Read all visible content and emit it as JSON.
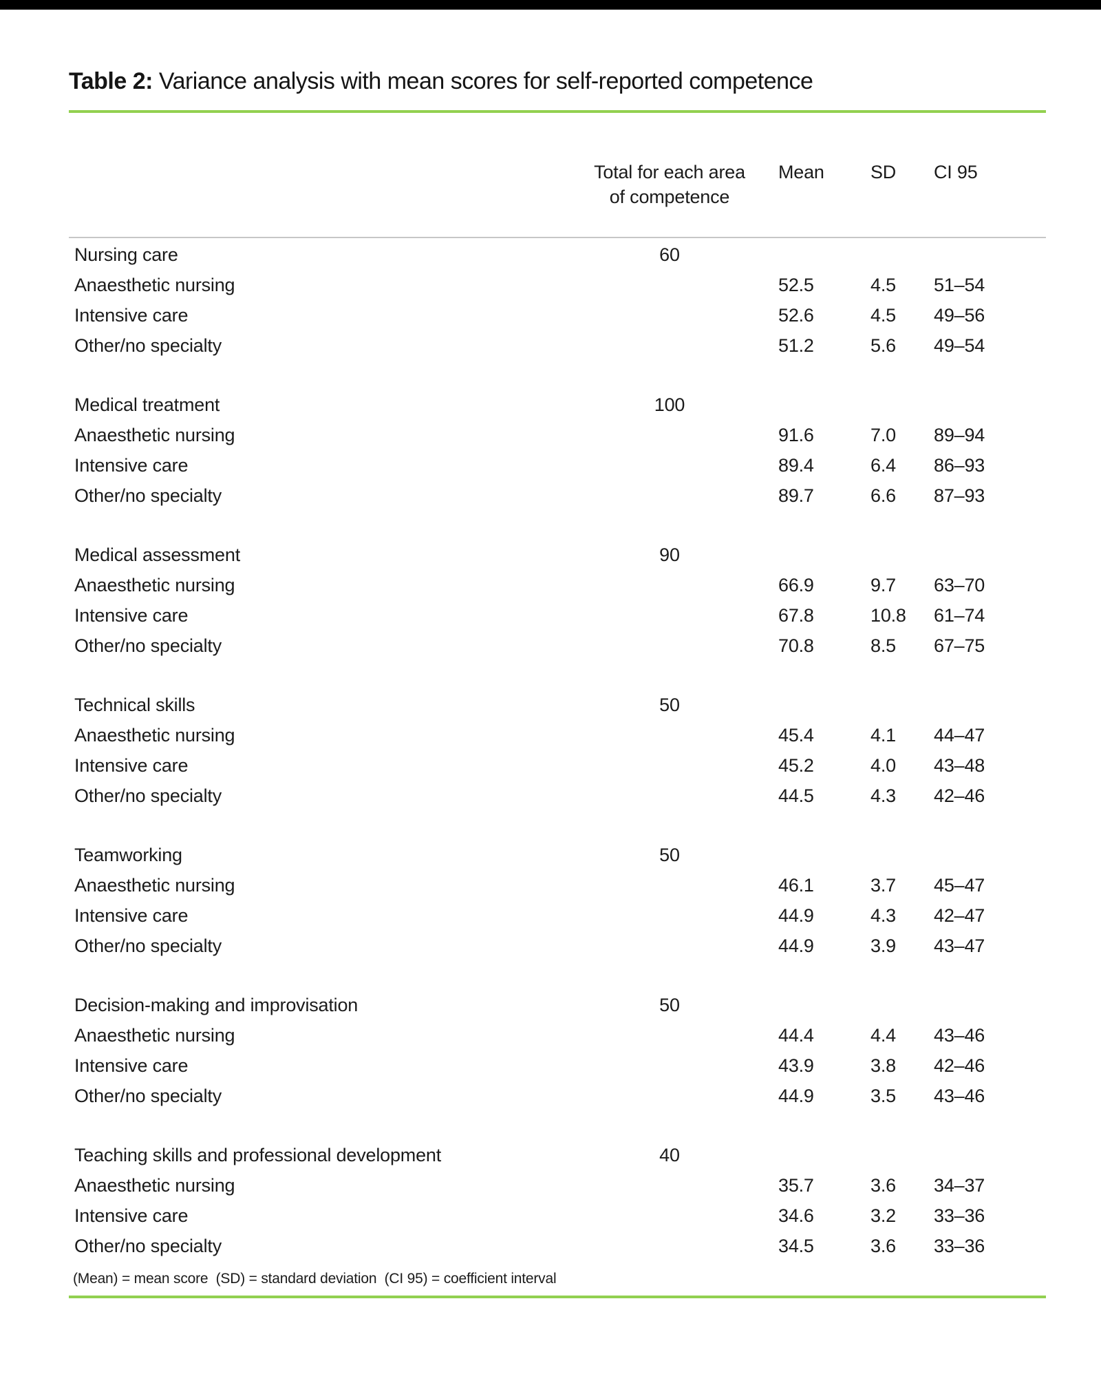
{
  "title": {
    "label": "Table 2:",
    "text": "Variance analysis with mean scores for self-reported competence"
  },
  "columns": {
    "total_line1": "Total for each area",
    "total_line2": "of competence",
    "mean": "Mean",
    "sd": "SD",
    "ci": "CI 95"
  },
  "table": {
    "groups": [
      {
        "area": "Nursing care",
        "total": "60",
        "rows": [
          {
            "label": "Anaesthetic nursing",
            "mean": "52.5",
            "sd": "4.5",
            "ci": "51–54"
          },
          {
            "label": "Intensive care",
            "mean": "52.6",
            "sd": "4.5",
            "ci": "49–56"
          },
          {
            "label": "Other/no specialty",
            "mean": "51.2",
            "sd": "5.6",
            "ci": "49–54"
          }
        ]
      },
      {
        "area": "Medical treatment",
        "total": "100",
        "rows": [
          {
            "label": "Anaesthetic nursing",
            "mean": "91.6",
            "sd": "7.0",
            "ci": "89–94"
          },
          {
            "label": "Intensive care",
            "mean": "89.4",
            "sd": "6.4",
            "ci": "86–93"
          },
          {
            "label": "Other/no specialty",
            "mean": "89.7",
            "sd": "6.6",
            "ci": "87–93"
          }
        ]
      },
      {
        "area": "Medical assessment",
        "total": "90",
        "rows": [
          {
            "label": "Anaesthetic nursing",
            "mean": "66.9",
            "sd": "9.7",
            "ci": "63–70"
          },
          {
            "label": "Intensive care",
            "mean": "67.8",
            "sd": "10.8",
            "ci": "61–74"
          },
          {
            "label": "Other/no specialty",
            "mean": "70.8",
            "sd": "8.5",
            "ci": "67–75"
          }
        ]
      },
      {
        "area": "Technical skills",
        "total": "50",
        "rows": [
          {
            "label": "Anaesthetic nursing",
            "mean": "45.4",
            "sd": "4.1",
            "ci": "44–47"
          },
          {
            "label": "Intensive care",
            "mean": "45.2",
            "sd": "4.0",
            "ci": "43–48"
          },
          {
            "label": "Other/no specialty",
            "mean": "44.5",
            "sd": "4.3",
            "ci": "42–46"
          }
        ]
      },
      {
        "area": "Teamworking",
        "total": "50",
        "rows": [
          {
            "label": "Anaesthetic nursing",
            "mean": "46.1",
            "sd": "3.7",
            "ci": "45–47"
          },
          {
            "label": "Intensive care",
            "mean": "44.9",
            "sd": "4.3",
            "ci": "42–47"
          },
          {
            "label": "Other/no specialty",
            "mean": "44.9",
            "sd": "3.9",
            "ci": "43–47"
          }
        ]
      },
      {
        "area": "Decision-making and improvisation",
        "total": "50",
        "rows": [
          {
            "label": "Anaesthetic nursing",
            "mean": "44.4",
            "sd": "4.4",
            "ci": "43–46"
          },
          {
            "label": "Intensive care",
            "mean": "43.9",
            "sd": "3.8",
            "ci": "42–46"
          },
          {
            "label": "Other/no specialty",
            "mean": "44.9",
            "sd": "3.5",
            "ci": "43–46"
          }
        ]
      },
      {
        "area": "Teaching skills and professional development",
        "total": "40",
        "rows": [
          {
            "label": "Anaesthetic nursing",
            "mean": "35.7",
            "sd": "3.6",
            "ci": "34–37"
          },
          {
            "label": "Intensive care",
            "mean": "34.6",
            "sd": "3.2",
            "ci": "33–36"
          },
          {
            "label": "Other/no specialty",
            "mean": "34.5",
            "sd": "3.6",
            "ci": "33–36"
          }
        ]
      }
    ]
  },
  "footnote": "(Mean) = mean score  (SD) = standard deviation  (CI 95) = coefficient interval",
  "colors": {
    "accent_green": "#92d050",
    "rule_grey": "#c6c6c6",
    "top_bar": "#000000"
  }
}
